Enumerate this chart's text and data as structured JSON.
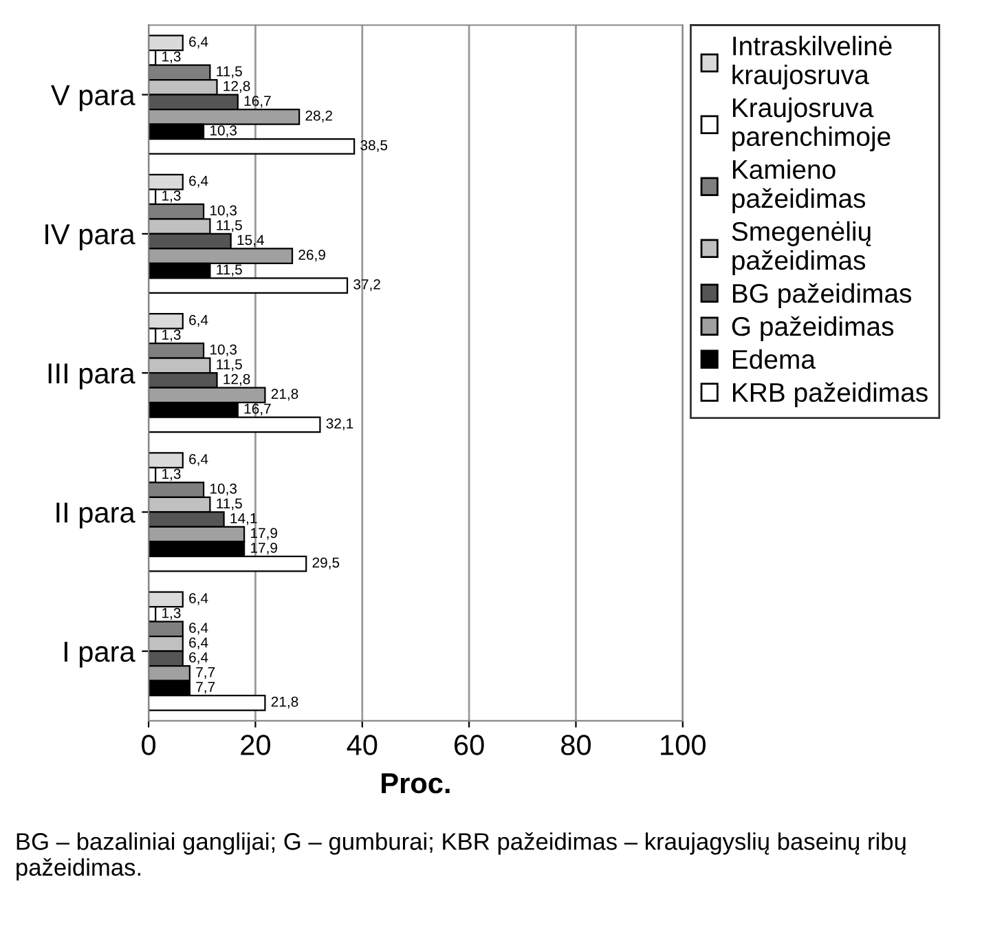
{
  "chart_data": {
    "type": "bar",
    "orientation": "horizontal",
    "xlabel": "Proc.",
    "categories": [
      "V para",
      "IV para",
      "III para",
      "II para",
      "I para"
    ],
    "series": [
      {
        "name": "Intraskilvelinė kraujosruva",
        "color": "#dadada",
        "values": [
          6.4,
          6.4,
          6.4,
          6.4,
          6.4
        ],
        "value_labels": [
          "6,4",
          "6,4",
          "6,4",
          "6,4",
          "6,4"
        ]
      },
      {
        "name": "Kraujosruva parenchimoje",
        "color": "#ffffff",
        "values": [
          1.3,
          1.3,
          1.3,
          1.3,
          1.3
        ],
        "value_labels": [
          "1,3",
          "1,3",
          "1,3",
          "1,3",
          "1,3"
        ]
      },
      {
        "name": "Kamieno pažeidimas",
        "color": "#7f7f7f",
        "values": [
          11.5,
          10.3,
          10.3,
          10.3,
          6.4
        ],
        "value_labels": [
          "11,5",
          "10,3",
          "10,3",
          "10,3",
          "6,4"
        ]
      },
      {
        "name": "Smegenėlių pažeidimas",
        "color": "#c0c0c0",
        "values": [
          12.8,
          11.5,
          11.5,
          11.5,
          6.4
        ],
        "value_labels": [
          "12,8",
          "11,5",
          "11,5",
          "11,5",
          "6,4"
        ]
      },
      {
        "name": "BG pažeidimas",
        "color": "#555555",
        "values": [
          16.7,
          15.4,
          12.8,
          14.1,
          6.4
        ],
        "value_labels": [
          "16,7",
          "15,4",
          "12,8",
          "14,1",
          "6,4"
        ]
      },
      {
        "name": "G pažeidimas",
        "color": "#a0a0a0",
        "values": [
          28.2,
          26.9,
          21.8,
          17.9,
          7.7
        ],
        "value_labels": [
          "28,2",
          "26,9",
          "21,8",
          "17,9",
          "7,7"
        ]
      },
      {
        "name": "Edema",
        "color": "#000000",
        "values": [
          10.3,
          11.5,
          16.7,
          17.9,
          7.7
        ],
        "value_labels": [
          "10,3",
          "11,5",
          "16,7",
          "17,9",
          "7,7"
        ]
      },
      {
        "name": "KRB pažeidimas",
        "color": "#ffffff",
        "values": [
          38.5,
          37.2,
          32.1,
          29.5,
          21.8
        ],
        "value_labels": [
          "38,5",
          "37,2",
          "32,1",
          "29,5",
          "21,8"
        ]
      }
    ],
    "xlim": [
      0,
      100
    ],
    "xticks": [
      0,
      20,
      40,
      60,
      80,
      100
    ],
    "grid": "x",
    "legend": "right",
    "annotations": [
      "BG – bazaliniai ganglijai; G – gumburai; KBR pažeidimas – kraujagyslių baseinų ribų pažeidimas."
    ]
  }
}
